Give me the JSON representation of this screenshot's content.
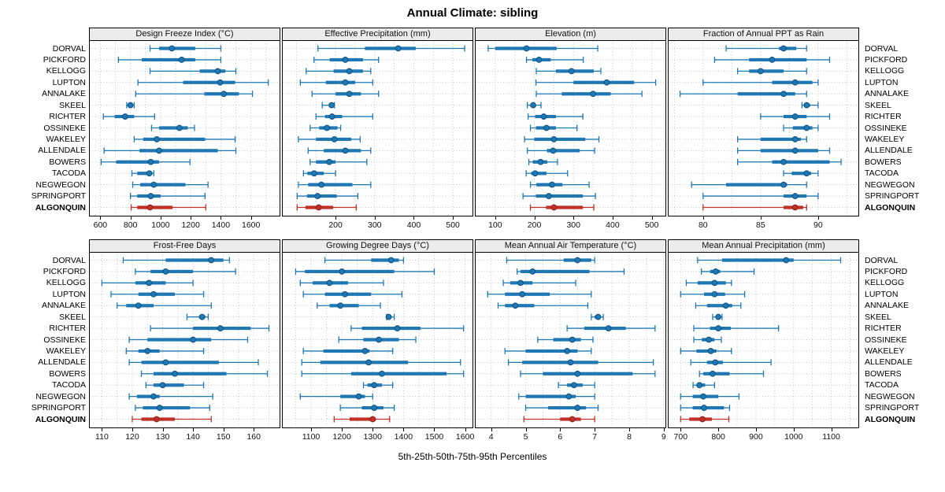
{
  "title": "Annual Climate: sibling",
  "caption": "5th-25th-50th-75th-95th Percentiles",
  "colors": {
    "series": "#1f78b4",
    "series_edge": "#10527e",
    "highlight": "#c13127",
    "highlight_edge": "#8f1f1f",
    "grid": "#c6c6c6",
    "panel_border": "#000000",
    "panel_header_bg": "#ececec"
  },
  "chart_data": {
    "type": "dot-interval",
    "subtype": "trellis percentile plot, 2 rows x 4 columns of panels",
    "percentile_labels": [
      "5th",
      "25th",
      "50th",
      "75th",
      "95th"
    ],
    "sites": [
      "DORVAL",
      "PICKFORD",
      "KELLOGG",
      "LUPTON",
      "ANNALAKE",
      "SKEEL",
      "RICHTER",
      "OSSINEKE",
      "WAKELEY",
      "ALLENDALE",
      "BOWERS",
      "TACODA",
      "NEGWEGON",
      "SPRINGPORT",
      "ALGONQUIN"
    ],
    "highlight_site": "ALGONQUIN",
    "grid": "dotted",
    "legend_position": "none",
    "panels": [
      {
        "title": "Design Freeze Index (°C)",
        "xlim": [
          530,
          1790
        ],
        "ticks": [
          600,
          800,
          1000,
          1200,
          1400,
          1600
        ],
        "grid_step": 100,
        "values": [
          [
            930,
            990,
            1075,
            1230,
            1400
          ],
          [
            720,
            875,
            1140,
            1230,
            1400
          ],
          [
            930,
            1260,
            1380,
            1430,
            1500
          ],
          [
            850,
            1150,
            1395,
            1495,
            1715
          ],
          [
            835,
            1290,
            1420,
            1520,
            1610
          ],
          [
            775,
            790,
            800,
            810,
            825
          ],
          [
            620,
            695,
            765,
            825,
            960
          ],
          [
            940,
            990,
            1125,
            1180,
            1225
          ],
          [
            825,
            885,
            975,
            1295,
            1495
          ],
          [
            625,
            860,
            990,
            1380,
            1500
          ],
          [
            605,
            705,
            935,
            990,
            1195
          ],
          [
            810,
            845,
            925,
            945,
            955
          ],
          [
            815,
            865,
            955,
            1165,
            1315
          ],
          [
            800,
            845,
            935,
            1000,
            1295
          ],
          [
            805,
            845,
            930,
            1080,
            1300
          ]
        ]
      },
      {
        "title": "Effective Precipitation (mm)",
        "xlim": [
          65,
          550
        ],
        "ticks": [
          200,
          300,
          400,
          500
        ],
        "grid_step": 50,
        "values": [
          [
            155,
            275,
            360,
            405,
            530
          ],
          [
            145,
            185,
            225,
            270,
            310
          ],
          [
            125,
            195,
            235,
            270,
            290
          ],
          [
            110,
            175,
            225,
            250,
            295
          ],
          [
            140,
            200,
            235,
            265,
            310
          ],
          [
            166,
            183,
            190,
            193,
            197
          ],
          [
            150,
            173,
            191,
            217,
            295
          ],
          [
            135,
            158,
            178,
            205,
            213
          ],
          [
            105,
            150,
            197,
            240,
            263
          ],
          [
            130,
            170,
            225,
            265,
            290
          ],
          [
            135,
            150,
            184,
            200,
            280
          ],
          [
            118,
            128,
            145,
            170,
            200
          ],
          [
            105,
            130,
            164,
            243,
            290
          ],
          [
            102,
            127,
            154,
            203,
            257
          ],
          [
            102,
            123,
            157,
            194,
            253
          ]
        ]
      },
      {
        "title": "Elevation (m)",
        "xlim": [
          50,
          535
        ],
        "ticks": [
          100,
          200,
          300,
          400,
          500
        ],
        "grid_step": 50,
        "values": [
          [
            82,
            100,
            180,
            257,
            362
          ],
          [
            180,
            195,
            212,
            242,
            325
          ],
          [
            205,
            255,
            295,
            352,
            370
          ],
          [
            204,
            300,
            385,
            455,
            510
          ],
          [
            205,
            270,
            350,
            395,
            475
          ],
          [
            182,
            192,
            197,
            203,
            217
          ],
          [
            184,
            202,
            224,
            255,
            324
          ],
          [
            190,
            204,
            231,
            255,
            309
          ],
          [
            175,
            200,
            250,
            330,
            365
          ],
          [
            182,
            232,
            248,
            316,
            354
          ],
          [
            186,
            196,
            216,
            233,
            259
          ],
          [
            179,
            192,
            202,
            231,
            285
          ],
          [
            190,
            205,
            245,
            272,
            340
          ],
          [
            171,
            204,
            237,
            324,
            356
          ],
          [
            190,
            230,
            250,
            324,
            352
          ]
        ]
      },
      {
        "title": "Fraction of Annual PPT as Rain",
        "xlim": [
          77,
          93.5
        ],
        "ticks": [
          80,
          85,
          90
        ],
        "grid_step": 2.5,
        "values": [
          [
            82,
            86.6,
            87,
            88.1,
            89
          ],
          [
            81,
            84,
            86,
            89,
            91
          ],
          [
            83,
            84,
            85,
            87,
            89
          ],
          [
            80,
            86,
            88,
            89.5,
            90
          ],
          [
            78,
            83,
            87,
            88,
            89
          ],
          [
            88.6,
            88.9,
            89,
            89.3,
            90
          ],
          [
            85,
            87,
            88,
            89,
            91
          ],
          [
            87,
            87.8,
            89,
            89.5,
            90
          ],
          [
            83,
            85,
            88,
            88.5,
            89
          ],
          [
            83,
            85,
            88,
            90,
            91
          ],
          [
            83,
            86,
            87,
            91,
            92
          ],
          [
            87,
            87.7,
            89,
            89.4,
            90
          ],
          [
            79,
            82,
            87,
            87.3,
            89
          ],
          [
            80,
            87,
            88,
            89,
            90
          ],
          [
            80,
            87,
            88,
            88.7,
            89
          ]
        ]
      },
      {
        "title": "Frost-Free Days",
        "xlim": [
          106,
          168.5
        ],
        "ticks": [
          110,
          120,
          130,
          140,
          150,
          160
        ],
        "grid_step": 5,
        "values": [
          [
            117,
            131,
            146,
            150,
            152
          ],
          [
            121,
            126,
            131,
            140,
            154
          ],
          [
            110,
            121,
            125.5,
            131,
            140
          ],
          [
            113,
            122,
            127,
            134,
            143.5
          ],
          [
            115,
            118,
            122,
            127,
            146
          ],
          [
            138,
            142,
            143,
            144,
            145
          ],
          [
            126,
            140,
            149,
            159,
            165
          ],
          [
            119,
            125,
            140,
            146,
            158
          ],
          [
            118,
            122,
            125,
            129,
            143.5
          ],
          [
            119,
            123,
            131,
            148.5,
            161.5
          ],
          [
            123,
            127,
            134,
            151,
            164.5
          ],
          [
            124.5,
            127,
            130,
            137,
            143.5
          ],
          [
            119,
            121.5,
            127,
            129,
            146.5
          ],
          [
            121,
            123.5,
            129,
            139,
            145.5
          ],
          [
            120,
            123,
            128,
            134,
            146
          ]
        ]
      },
      {
        "title": "Growing Degree Days (°C)",
        "xlim": [
          1008,
          1624
        ],
        "ticks": [
          1100,
          1200,
          1300,
          1400,
          1500,
          1600
        ],
        "grid_step": 50,
        "values": [
          [
            1145,
            1295,
            1360,
            1385,
            1400
          ],
          [
            1050,
            1080,
            1200,
            1370,
            1500
          ],
          [
            1065,
            1105,
            1160,
            1220,
            1335
          ],
          [
            1075,
            1145,
            1210,
            1295,
            1395
          ],
          [
            1120,
            1160,
            1195,
            1255,
            1325
          ],
          [
            1345,
            1349,
            1352,
            1357,
            1370
          ],
          [
            1230,
            1265,
            1380,
            1455,
            1595
          ],
          [
            1190,
            1270,
            1320,
            1385,
            1440
          ],
          [
            1075,
            1140,
            1275,
            1290,
            1365
          ],
          [
            1070,
            1130,
            1287,
            1415,
            1585
          ],
          [
            1070,
            1230,
            1330,
            1540,
            1595
          ],
          [
            1270,
            1283,
            1305,
            1330,
            1365
          ],
          [
            1065,
            1195,
            1255,
            1275,
            1300
          ],
          [
            1195,
            1265,
            1305,
            1335,
            1370
          ],
          [
            1175,
            1225,
            1300,
            1310,
            1355
          ]
        ]
      },
      {
        "title": "Mean Annual Air Temperature (°C)",
        "xlim": [
          3.55,
          9.05
        ],
        "ticks": [
          4,
          5,
          6,
          7,
          8,
          9
        ],
        "grid_step": 0.5,
        "values": [
          [
            4.45,
            6.1,
            6.5,
            6.9,
            7.0
          ],
          [
            4.75,
            4.85,
            5.2,
            6.85,
            7.85
          ],
          [
            4.35,
            4.55,
            4.85,
            5.2,
            6.45
          ],
          [
            3.9,
            4.4,
            4.9,
            5.7,
            6.9
          ],
          [
            4.2,
            4.4,
            4.7,
            5.25,
            6.8
          ],
          [
            6.9,
            7.0,
            7.1,
            7.15,
            7.25
          ],
          [
            6.2,
            6.7,
            7.4,
            7.9,
            8.75
          ],
          [
            5.35,
            5.8,
            6.35,
            6.6,
            6.95
          ],
          [
            4.4,
            5.0,
            6.2,
            6.5,
            6.9
          ],
          [
            4.5,
            4.9,
            6.3,
            7.1,
            8.7
          ],
          [
            4.85,
            5.5,
            6.5,
            8.1,
            8.75
          ],
          [
            5.95,
            6.2,
            6.4,
            6.65,
            7.0
          ],
          [
            4.8,
            5.0,
            6.25,
            6.45,
            7.0
          ],
          [
            5.0,
            5.65,
            6.5,
            6.75,
            7.1
          ],
          [
            4.95,
            6.0,
            6.35,
            6.6,
            7.0
          ]
        ]
      },
      {
        "title": "Mean Annual Precipitation (mm)",
        "xlim": [
          668,
          1172
        ],
        "ticks": [
          700,
          800,
          900,
          1000,
          1100
        ],
        "grid_step": 50,
        "values": [
          [
            745,
            810,
            980,
            1000,
            1125
          ],
          [
            755,
            778,
            793,
            805,
            895
          ],
          [
            715,
            745,
            790,
            820,
            835
          ],
          [
            700,
            762,
            790,
            818,
            870
          ],
          [
            740,
            770,
            820,
            837,
            860
          ],
          [
            785,
            795,
            800,
            805,
            810
          ],
          [
            735,
            778,
            800,
            833,
            960
          ],
          [
            735,
            756,
            775,
            790,
            808
          ],
          [
            700,
            742,
            780,
            795,
            835
          ],
          [
            727,
            770,
            792,
            812,
            940
          ],
          [
            750,
            760,
            785,
            830,
            920
          ],
          [
            733,
            742,
            750,
            765,
            790
          ],
          [
            700,
            732,
            760,
            800,
            855
          ],
          [
            700,
            732,
            762,
            815,
            830
          ],
          [
            700,
            723,
            758,
            783,
            828
          ]
        ]
      }
    ]
  }
}
